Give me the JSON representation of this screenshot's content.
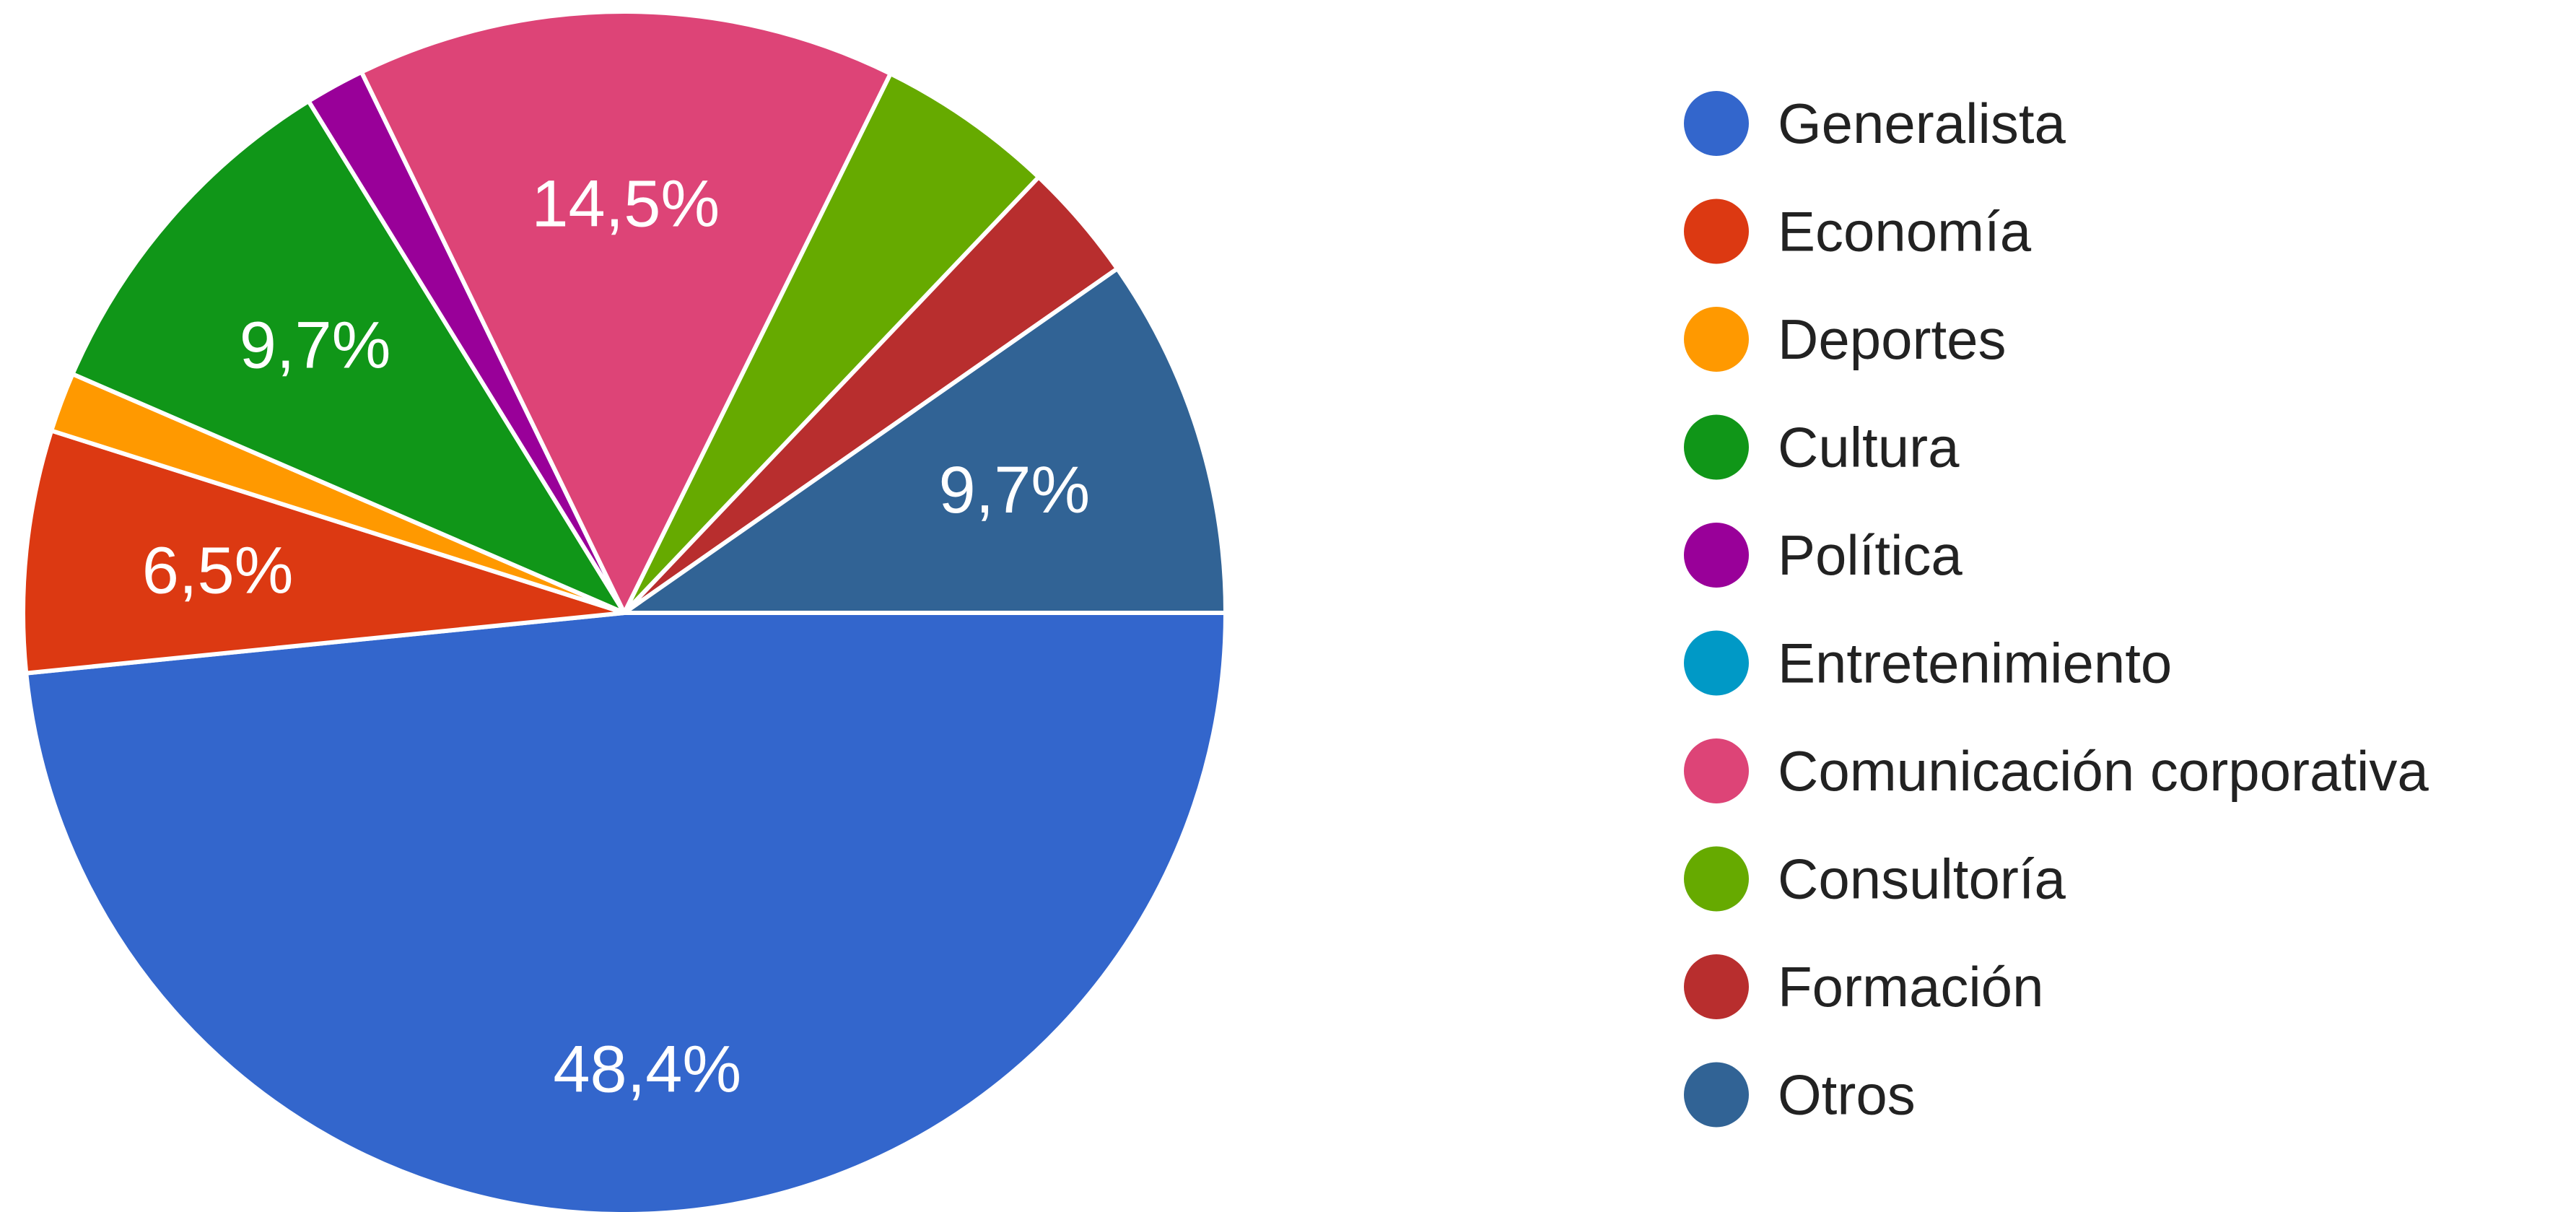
{
  "chart_data": {
    "type": "pie",
    "categories": [
      "Generalista",
      "Economía",
      "Deportes",
      "Cultura",
      "Política",
      "Entretenimiento",
      "Comunicación corporativa",
      "Consultoría",
      "Formación",
      "Otros"
    ],
    "values": [
      48.4,
      6.5,
      1.6,
      9.7,
      1.6,
      0,
      14.5,
      4.8,
      3.2,
      9.7
    ],
    "value_labels": [
      "48,4%",
      "6,5%",
      null,
      "9,7%",
      null,
      null,
      "14,5%",
      null,
      null,
      "9,7%"
    ],
    "colors": [
      "#3366cc",
      "#dc3912",
      "#ff9900",
      "#109618",
      "#990099",
      "#0099c6",
      "#dd4477",
      "#66aa00",
      "#b82e2e",
      "#316395"
    ],
    "legend": "right"
  }
}
